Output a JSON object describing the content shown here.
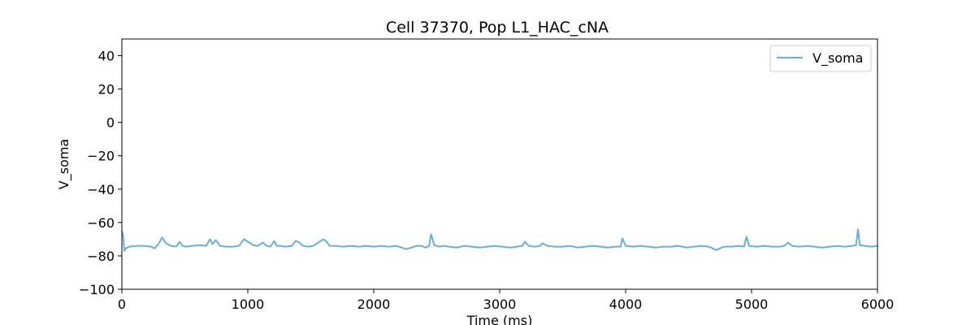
{
  "chart_data": {
    "type": "line",
    "title": "Cell 37370, Pop L1_HAC_cNA",
    "xlabel": "Time (ms)",
    "ylabel": "V_soma",
    "xlim": [
      0,
      6000
    ],
    "ylim": [
      -100,
      50
    ],
    "xticks": [
      0,
      1000,
      2000,
      3000,
      4000,
      5000,
      6000
    ],
    "yticks": [
      -100,
      -80,
      -60,
      -40,
      -20,
      0,
      20,
      40
    ],
    "xtick_labels": [
      "0",
      "1000",
      "2000",
      "3000",
      "4000",
      "5000",
      "6000"
    ],
    "ytick_labels": [
      "−100",
      "−80",
      "−60",
      "−40",
      "−20",
      "0",
      "20",
      "40"
    ],
    "legend": {
      "placement": "upper right",
      "entries": [
        "V_soma"
      ]
    },
    "series": [
      {
        "name": "V_soma",
        "color": "#6baed6",
        "x": [
          0,
          10,
          20,
          30,
          60,
          120,
          180,
          230,
          260,
          290,
          320,
          350,
          390,
          430,
          460,
          480,
          510,
          560,
          620,
          670,
          700,
          720,
          745,
          780,
          830,
          880,
          930,
          970,
          1000,
          1040,
          1080,
          1120,
          1150,
          1180,
          1210,
          1230,
          1260,
          1300,
          1350,
          1380,
          1410,
          1440,
          1480,
          1520,
          1560,
          1600,
          1620,
          1650,
          1700,
          1760,
          1820,
          1880,
          1940,
          2000,
          2060,
          2120,
          2180,
          2220,
          2260,
          2300,
          2340,
          2380,
          2410,
          2440,
          2455,
          2480,
          2520,
          2560,
          2600,
          2660,
          2720,
          2780,
          2840,
          2900,
          2960,
          3020,
          3080,
          3140,
          3180,
          3200,
          3230,
          3280,
          3320,
          3340,
          3380,
          3440,
          3500,
          3560,
          3620,
          3680,
          3740,
          3800,
          3860,
          3920,
          3960,
          3975,
          4000,
          4060,
          4120,
          4180,
          4240,
          4300,
          4360,
          4420,
          4480,
          4540,
          4600,
          4660,
          4720,
          4780,
          4840,
          4900,
          4940,
          4960,
          4980,
          5040,
          5100,
          5160,
          5220,
          5260,
          5290,
          5320,
          5380,
          5440,
          5500,
          5560,
          5620,
          5680,
          5740,
          5800,
          5830,
          5845,
          5860,
          5900,
          5950,
          6000
        ],
        "y": [
          -65,
          -68,
          -77,
          -75.5,
          -74.5,
          -74,
          -74,
          -74.5,
          -75.5,
          -73,
          -69,
          -72.5,
          -74,
          -74.5,
          -71.5,
          -74,
          -74.5,
          -74,
          -73.5,
          -74,
          -70,
          -73,
          -70.5,
          -74,
          -74.5,
          -74.5,
          -74,
          -70,
          -71.5,
          -73.5,
          -74,
          -72,
          -74,
          -74.5,
          -71,
          -74,
          -74,
          -74.5,
          -74,
          -71,
          -72,
          -74,
          -74.5,
          -74,
          -72,
          -70,
          -71,
          -74,
          -74,
          -74.5,
          -74,
          -74.5,
          -74,
          -74.5,
          -74,
          -74.5,
          -74,
          -75,
          -76,
          -75,
          -74,
          -74,
          -75,
          -74,
          -67,
          -73.5,
          -74.5,
          -74,
          -74.5,
          -75,
          -74,
          -74.5,
          -75,
          -74.5,
          -74,
          -74.5,
          -75,
          -74.5,
          -74,
          -71.5,
          -74,
          -74.5,
          -74,
          -72.5,
          -74,
          -74.5,
          -74.5,
          -74,
          -75,
          -74.5,
          -74,
          -74.5,
          -75,
          -74.5,
          -74.5,
          -69.5,
          -74,
          -74.5,
          -74,
          -74.5,
          -75,
          -74.5,
          -74.5,
          -74,
          -75,
          -74.5,
          -74,
          -74.5,
          -76.5,
          -74.5,
          -74.5,
          -74,
          -74.5,
          -68.5,
          -74,
          -74.5,
          -74,
          -74.5,
          -74.5,
          -74,
          -72,
          -74,
          -74.5,
          -74,
          -74.5,
          -75,
          -74.5,
          -74,
          -74.5,
          -74,
          -73.5,
          -64,
          -73.5,
          -74,
          -74.5,
          -74
        ]
      }
    ]
  }
}
